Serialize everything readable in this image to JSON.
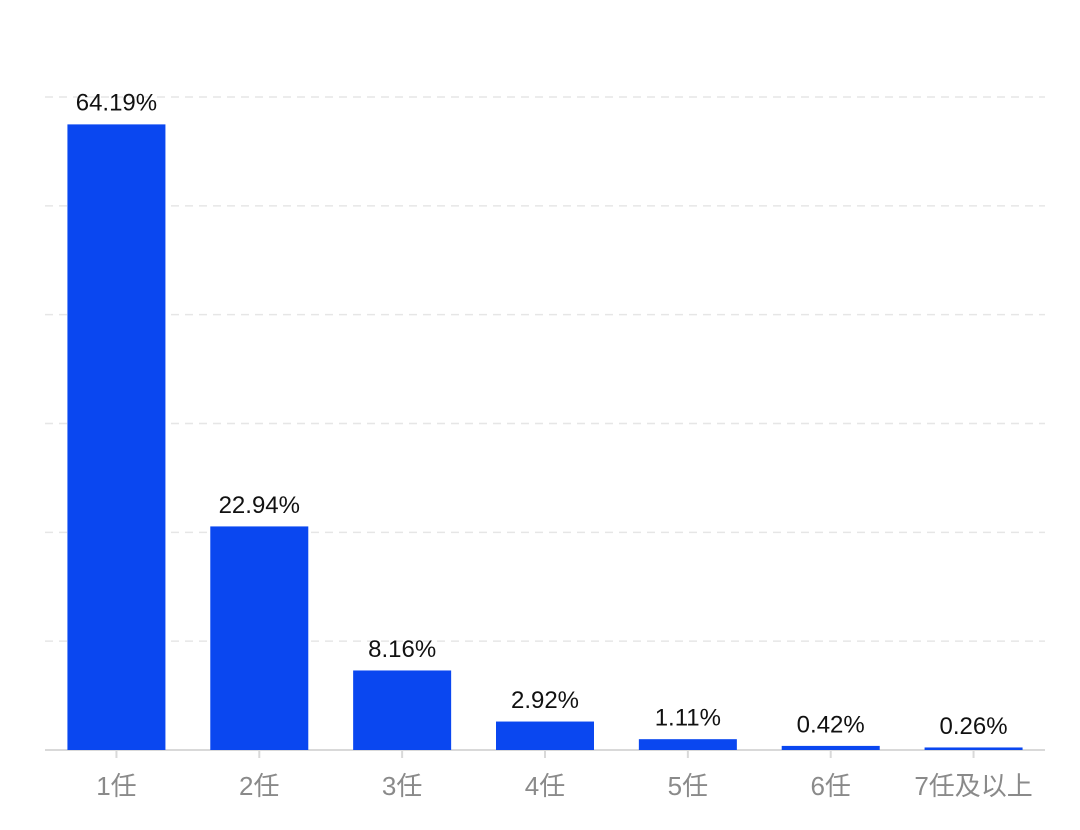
{
  "chart_data": {
    "type": "bar",
    "categories": [
      "1任",
      "2任",
      "3任",
      "4任",
      "5任",
      "6任",
      "7任及以上"
    ],
    "values": [
      64.19,
      22.94,
      8.16,
      2.92,
      1.11,
      0.42,
      0.26
    ],
    "value_labels": [
      "64.19%",
      "22.94%",
      "8.16%",
      "2.92%",
      "1.11%",
      "0.42%",
      "0.26%"
    ],
    "color": "#0a47f0",
    "ylim": [
      0,
      67
    ],
    "grid": true
  }
}
